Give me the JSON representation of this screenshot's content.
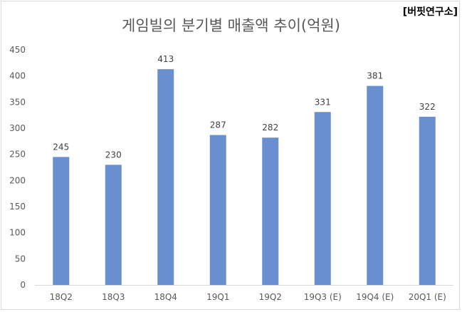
{
  "source_label": "[버핏연구소]",
  "chart_data": {
    "type": "bar",
    "title": "게임빌의 분기별 매출액 추이(억원)",
    "categories": [
      "18Q2",
      "18Q3",
      "18Q4",
      "19Q1",
      "19Q2",
      "19Q3 (E)",
      "19Q4 (E)",
      "20Q1 (E)"
    ],
    "values": [
      245,
      230,
      413,
      287,
      282,
      331,
      381,
      322
    ],
    "ylim": [
      0,
      450
    ],
    "yticks": [
      0,
      50,
      100,
      150,
      200,
      250,
      300,
      350,
      400,
      450
    ],
    "xlabel": "",
    "ylabel": "",
    "grid": false,
    "bar_color": "#6a8fd0",
    "axis_color": "#d9d9d9"
  }
}
